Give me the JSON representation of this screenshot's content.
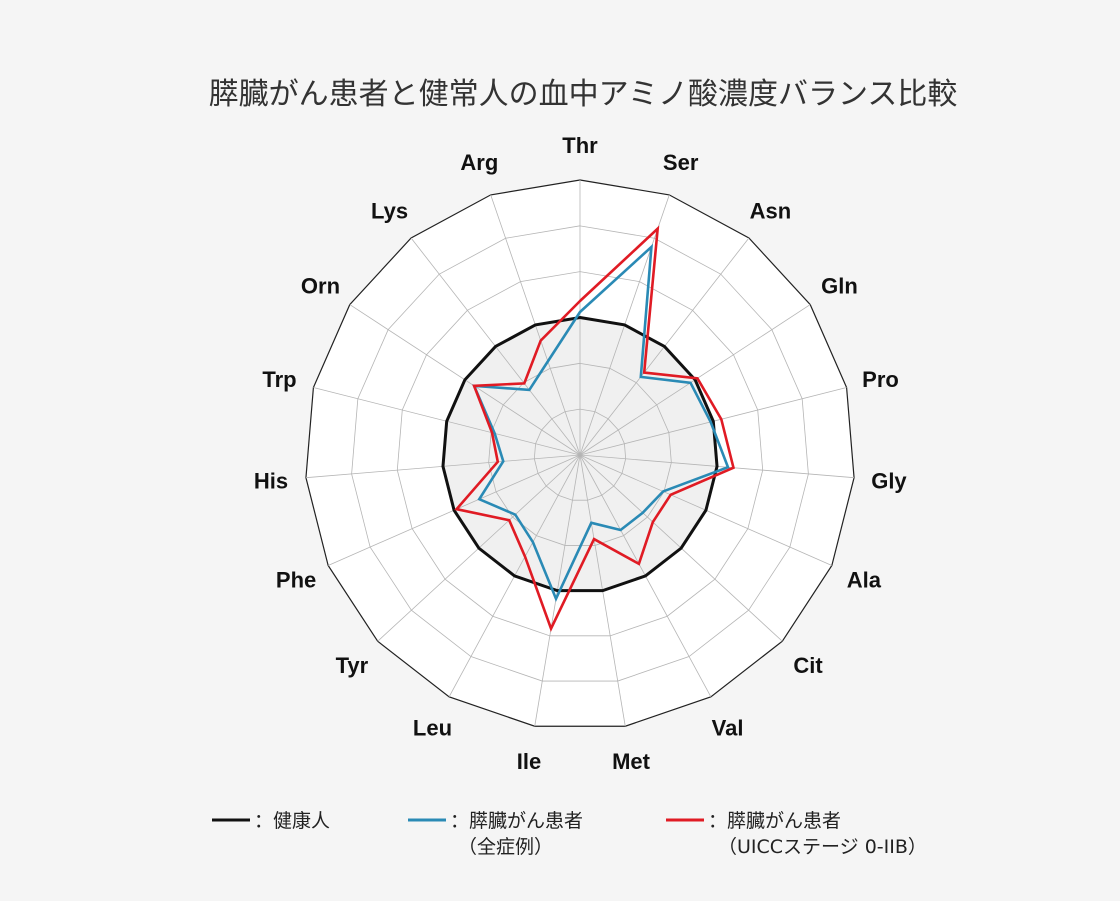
{
  "chart_data": {
    "type": "radar",
    "title": "膵臓がん患者と健常人の血中アミノ酸濃度バランス比較",
    "axes": [
      "Thr",
      "Ser",
      "Asn",
      "Gln",
      "Pro",
      "Gly",
      "Ala",
      "Cit",
      "Val",
      "Met",
      "Ile",
      "Leu",
      "Tyr",
      "Phe",
      "His",
      "Trp",
      "Orn",
      "Lys",
      "Arg"
    ],
    "rmax": 1.0,
    "rings": 6,
    "series": [
      {
        "name": "：健康人",
        "color": "#111111",
        "values": [
          0.5,
          0.5,
          0.5,
          0.5,
          0.5,
          0.5,
          0.5,
          0.5,
          0.5,
          0.5,
          0.5,
          0.5,
          0.5,
          0.5,
          0.5,
          0.5,
          0.5,
          0.5,
          0.5
        ]
      },
      {
        "name": "：膵臓がん患者",
        "name2": "（全症例）",
        "color": "#2a8ab5",
        "values": [
          0.52,
          0.8,
          0.36,
          0.48,
          0.49,
          0.54,
          0.33,
          0.31,
          0.31,
          0.25,
          0.53,
          0.36,
          0.32,
          0.4,
          0.28,
          0.32,
          0.46,
          0.3,
          0.36
        ]
      },
      {
        "name": "：膵臓がん患者",
        "name2": "（UICCステージ 0-IIB）",
        "color": "#e01b24",
        "values": [
          0.56,
          0.87,
          0.38,
          0.51,
          0.53,
          0.56,
          0.36,
          0.36,
          0.45,
          0.31,
          0.64,
          0.42,
          0.35,
          0.49,
          0.3,
          0.33,
          0.46,
          0.33,
          0.44
        ]
      }
    ]
  }
}
